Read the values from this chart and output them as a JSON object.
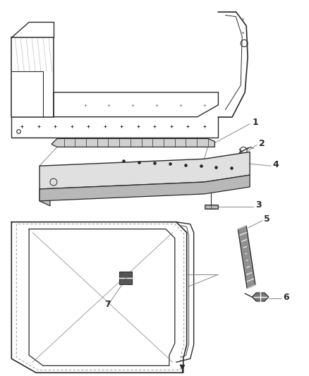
{
  "bg_color": "#ffffff",
  "line_color": "#2a2a2a",
  "gray_color": "#888888",
  "label_fontsize": 8.5,
  "parts": [
    "1",
    "2",
    "3",
    "4",
    "5",
    "6",
    "7"
  ]
}
